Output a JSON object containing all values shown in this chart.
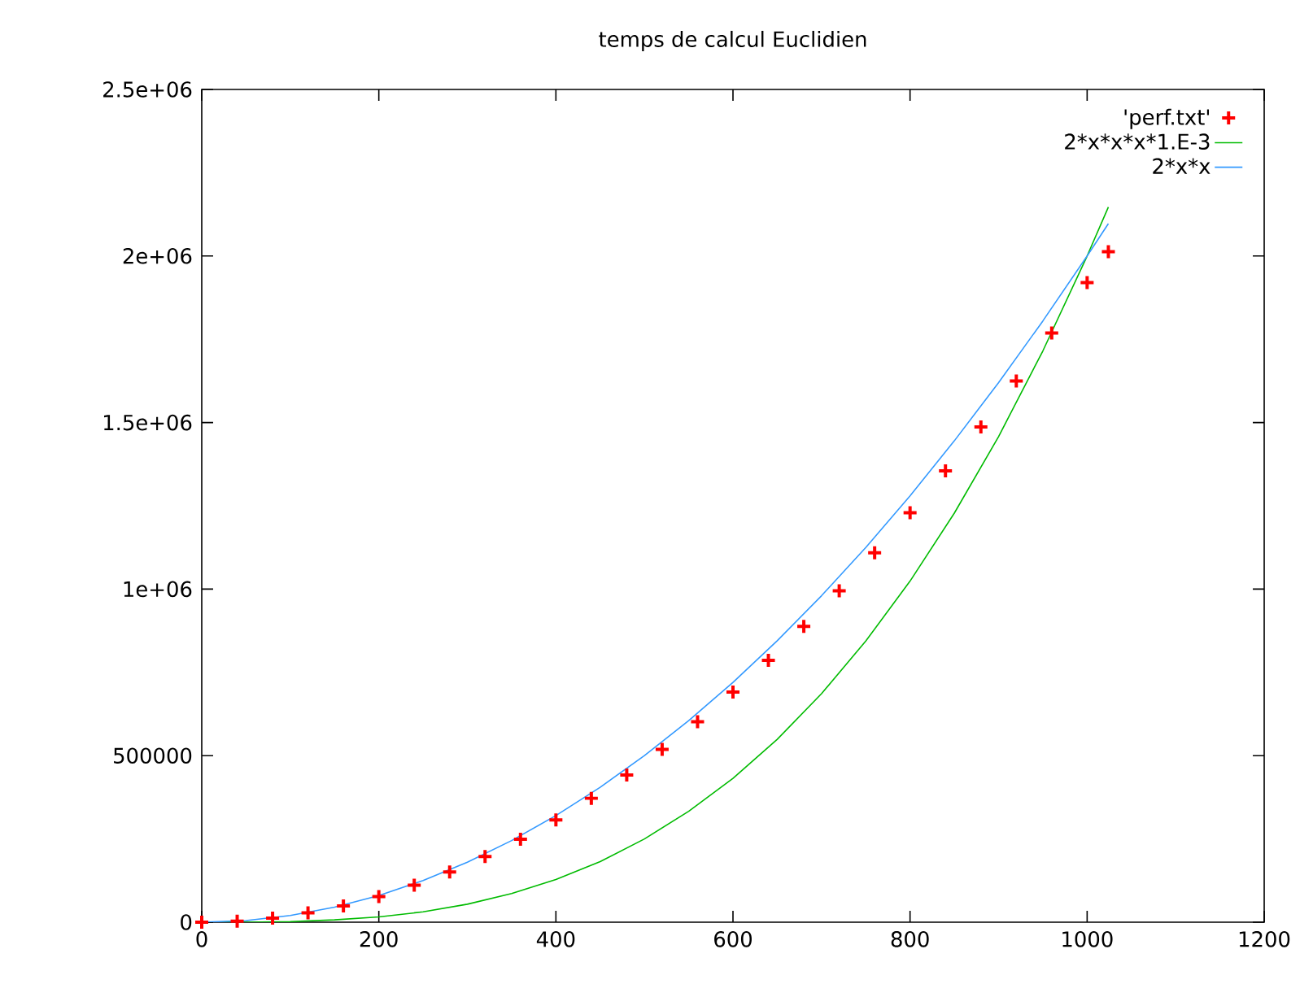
{
  "chart_data": {
    "type": "line",
    "title": "temps de calcul Euclidien",
    "legend": "top right",
    "grid": false,
    "xlim": [
      0,
      1200
    ],
    "xticks": [
      0,
      200,
      400,
      600,
      800,
      1000,
      1200
    ],
    "ylim": [
      0,
      2500000
    ],
    "yticks": [
      {
        "value": 0,
        "label": "0"
      },
      {
        "value": 500000,
        "label": "500000"
      },
      {
        "value": 1000000,
        "label": "1e+06"
      },
      {
        "value": 1500000,
        "label": "1.5e+06"
      },
      {
        "value": 2000000,
        "label": "2e+06"
      },
      {
        "value": 2500000,
        "label": "2.5e+06"
      }
    ],
    "series": [
      {
        "name": "'perf.txt'",
        "type": "scatter",
        "marker": "cross",
        "color": "#ff0000",
        "x": [
          0,
          40,
          80,
          120,
          160,
          200,
          240,
          280,
          320,
          360,
          400,
          440,
          480,
          520,
          560,
          600,
          640,
          680,
          720,
          760,
          800,
          840,
          880,
          920,
          960,
          1000,
          1024
        ],
        "values": [
          0,
          3000,
          12000,
          28000,
          49000,
          77000,
          111000,
          151000,
          197000,
          249000,
          307000,
          372000,
          442000,
          519000,
          602000,
          691000,
          786000,
          888000,
          995000,
          1109000,
          1229000,
          1355000,
          1487000,
          1625000,
          1769000,
          1920000,
          2013000
        ]
      },
      {
        "name": "2*x*x*x*1.E-3",
        "color": "#00bb00",
        "x": [
          0,
          50,
          100,
          150,
          200,
          250,
          300,
          350,
          400,
          450,
          500,
          550,
          600,
          650,
          700,
          750,
          800,
          850,
          900,
          950,
          1000,
          1024
        ],
        "values": [
          0,
          0,
          2000,
          7000,
          16000,
          31000,
          54000,
          86000,
          128000,
          182000,
          250000,
          333000,
          432000,
          549000,
          686000,
          844000,
          1024000,
          1228000,
          1458000,
          1715000,
          2000000,
          2147000
        ]
      },
      {
        "name": "2*x*x",
        "color": "#3399ff",
        "x": [
          0,
          50,
          100,
          150,
          200,
          250,
          300,
          350,
          400,
          450,
          500,
          550,
          600,
          650,
          700,
          750,
          800,
          850,
          900,
          950,
          1000,
          1024
        ],
        "values": [
          0,
          5000,
          20000,
          45000,
          80000,
          125000,
          180000,
          245000,
          320000,
          405000,
          500000,
          605000,
          720000,
          845000,
          980000,
          1125000,
          1280000,
          1445000,
          1620000,
          1805000,
          2000000,
          2097000
        ]
      }
    ]
  }
}
